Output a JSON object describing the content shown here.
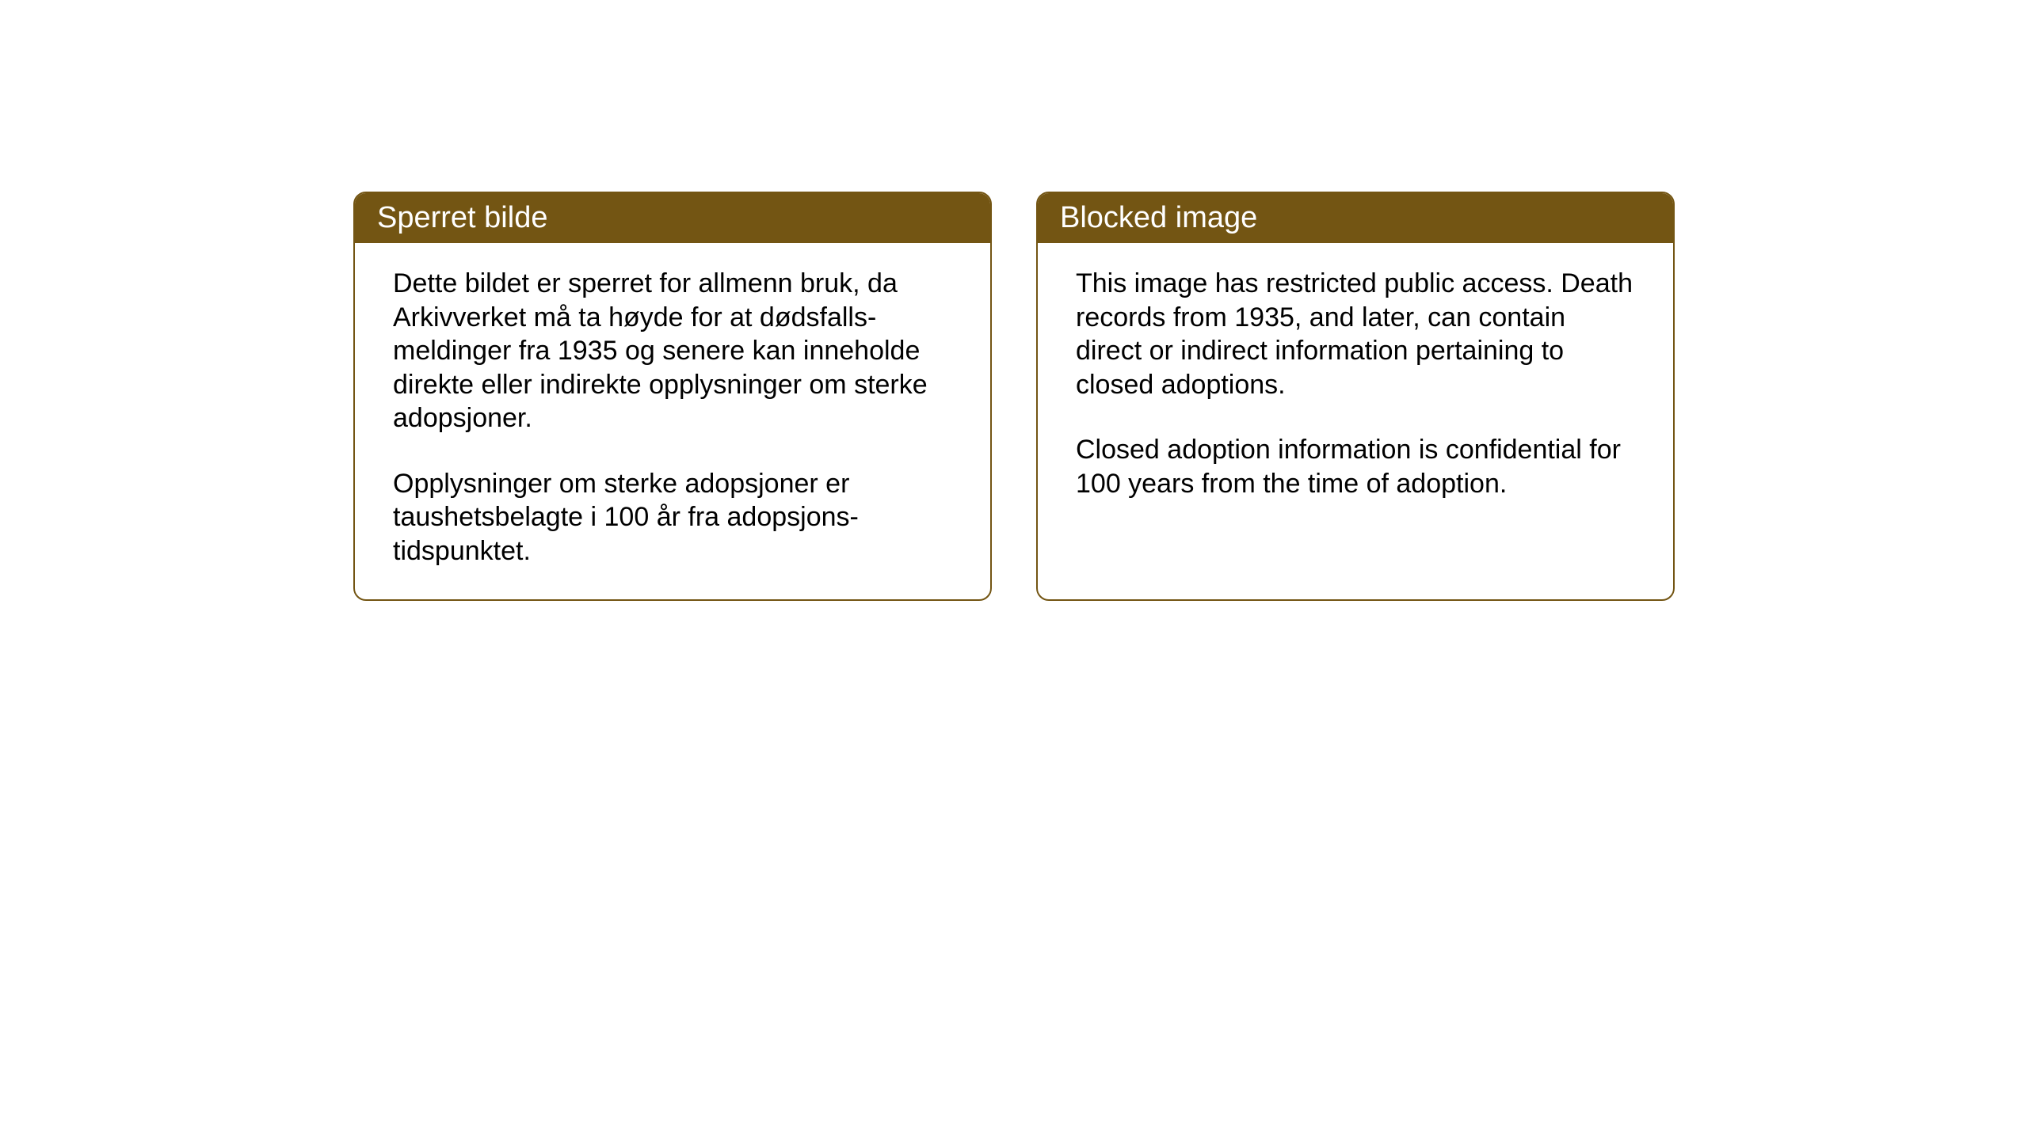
{
  "layout": {
    "background_color": "#ffffff",
    "box_border_color": "#735513",
    "header_bg_color": "#735513",
    "header_text_color": "#ffffff",
    "body_text_color": "#000000",
    "border_radius": 16,
    "header_fontsize": 38,
    "body_fontsize": 34
  },
  "notices": {
    "norwegian": {
      "title": "Sperret bilde",
      "paragraph1": "Dette bildet er sperret for allmenn bruk, da Arkivverket må ta høyde for at dødsfalls-meldinger fra 1935 og senere kan inneholde direkte eller indirekte opplysninger om sterke adopsjoner.",
      "paragraph2": "Opplysninger om sterke adopsjoner er taushetsbelagte i 100 år fra adopsjons-tidspunktet."
    },
    "english": {
      "title": "Blocked image",
      "paragraph1": "This image has restricted public access. Death records from 1935, and later, can contain direct or indirect information pertaining to closed adoptions.",
      "paragraph2": "Closed adoption information is confidential for 100 years from the time of adoption."
    }
  }
}
